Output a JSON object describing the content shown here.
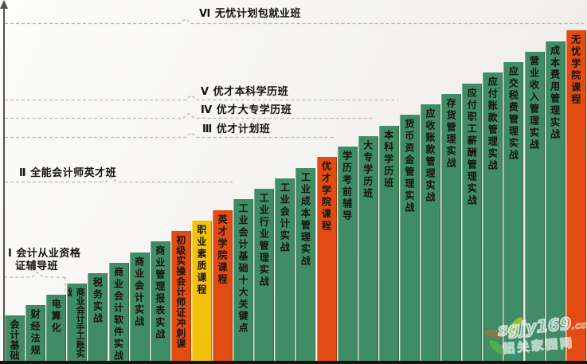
{
  "chart_data": {
    "type": "bar",
    "subtype": "staircase-curriculum",
    "title": "",
    "categories": [
      "会计基础",
      "财经法规",
      "电算化",
      "商业会计手工账实战",
      "税务实战",
      "商业会计软件实战",
      "商业会计实战",
      "商业管理报表实战",
      "初级实操会计师证冲刺课",
      "职业素质课程",
      "英才学院课程",
      "工业会计基础十大关键点",
      "工业行业管理实战",
      "工业会计实战",
      "工业成本管理实战",
      "优才学院课程",
      "学历考前辅导",
      "大专学历班",
      "本科学历班",
      "货币资金管理实战",
      "应收账款管理实战",
      "存货管理实战",
      "应付职工薪酬管理实战",
      "应付账款管理实战",
      "应交税费管理实战",
      "营业收入管理实战",
      "成本费用管理实战",
      "无忧学院课程"
    ],
    "values": [
      1,
      2,
      3,
      4,
      5,
      6,
      7,
      8,
      9,
      10,
      11,
      12,
      13,
      14,
      15,
      16,
      17,
      18,
      19,
      20,
      21,
      22,
      23,
      24,
      25,
      26,
      27,
      28
    ],
    "bar_colors": [
      "green",
      "green",
      "green",
      "green",
      "green",
      "green",
      "green",
      "green",
      "orange",
      "yellow",
      "orange",
      "green",
      "green",
      "green",
      "green",
      "orange",
      "green",
      "green",
      "green",
      "green",
      "green",
      "green",
      "green",
      "green",
      "green",
      "green",
      "green",
      "orange"
    ],
    "palette": {
      "green": "#3F8C66",
      "orange": "#E24C12",
      "yellow": "#F2C30D",
      "text": "#16130E"
    },
    "annotations": [
      {
        "numeral": "Ⅰ",
        "lines": [
          "Ⅰ 会计从业资格",
          "证辅导班"
        ],
        "line_ends_at_bar": 3
      },
      {
        "numeral": "Ⅱ",
        "lines": [
          "Ⅱ 全能会计师英才班"
        ],
        "line_ends_at_bar": 11
      },
      {
        "numeral": "Ⅲ",
        "lines": [
          "Ⅲ 优才计划班"
        ],
        "line_ends_at_bar": 16
      },
      {
        "numeral": "Ⅳ",
        "lines": [
          "Ⅳ 优才大专学历班"
        ],
        "line_ends_at_bar": 18
      },
      {
        "numeral": "Ⅴ",
        "lines": [
          "Ⅴ 优才本科学历班"
        ],
        "line_ends_at_bar": 19
      },
      {
        "numeral": "Ⅵ",
        "lines": [
          "Ⅵ 无忧计划包就业班"
        ],
        "line_ends_at_bar": 28
      }
    ],
    "legend_position": "none",
    "grid": "dashed-level-lines",
    "y_axis": "unlabeled-arrow"
  },
  "watermark": {
    "site": "sgjy169",
    "tld": ".com",
    "name": "韶关家园网"
  }
}
